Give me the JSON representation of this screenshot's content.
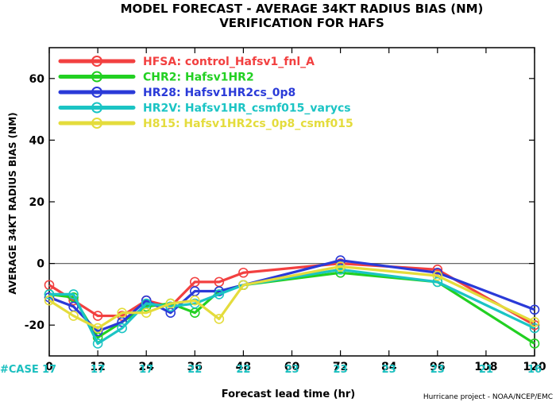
{
  "chart_data": {
    "type": "line",
    "title": "MODEL FORECAST - AVERAGE 34KT RADIUS BIAS (NM)",
    "subtitle": "VERIFICATION FOR HAFS",
    "xlabel": "Forecast lead time (hr)",
    "ylabel": "AVERAGE 34KT RADIUS BIAS (NM)",
    "xlim": [
      0,
      120
    ],
    "ylim": [
      -30,
      70
    ],
    "x_ticks": [
      0,
      12,
      24,
      36,
      48,
      60,
      72,
      84,
      96,
      108,
      120
    ],
    "y_ticks": [
      -20,
      0,
      20,
      40,
      60
    ],
    "zero_line": true,
    "legend_position": "top-left",
    "case_label": "#CASE",
    "case_color": "#1bbfbf",
    "cases": [
      {
        "x": 0,
        "n": "17"
      },
      {
        "x": 12,
        "n": "17"
      },
      {
        "x": 24,
        "n": "17"
      },
      {
        "x": 36,
        "n": "22"
      },
      {
        "x": 48,
        "n": "22"
      },
      {
        "x": 60,
        "n": "23"
      },
      {
        "x": 72,
        "n": "23"
      },
      {
        "x": 84,
        "n": "23"
      },
      {
        "x": 96,
        "n": "23"
      },
      {
        "x": 108,
        "n": "21"
      },
      {
        "x": 120,
        "n": "16"
      }
    ],
    "series": [
      {
        "name": "HFSA: control_Hafsv1_fnl_A",
        "color": "#f24040",
        "x": [
          0,
          6,
          12,
          18,
          24,
          30,
          36,
          42,
          48,
          72,
          96,
          120
        ],
        "y": [
          -7,
          -12,
          -17,
          -17,
          -12,
          -14,
          -6,
          -6,
          -3,
          0,
          -2,
          -20
        ]
      },
      {
        "name": "CHR2: Hafsv1HR2",
        "color": "#22d022",
        "x": [
          0,
          6,
          12,
          18,
          24,
          30,
          36,
          42,
          48,
          72,
          96,
          120
        ],
        "y": [
          -10,
          -11,
          -24,
          -19,
          -14,
          -13,
          -16,
          -9,
          -7,
          -3,
          -6,
          -26
        ]
      },
      {
        "name": "HR28: Hafsv1HR2cs_0p8",
        "color": "#2a3ad8",
        "x": [
          0,
          6,
          12,
          18,
          24,
          30,
          36,
          42,
          48,
          72,
          96,
          120
        ],
        "y": [
          -11,
          -14,
          -22,
          -19,
          -12,
          -16,
          -9,
          -9,
          -7,
          1,
          -3,
          -15
        ]
      },
      {
        "name": "HR2V: Hafsv1HR_csmf015_varycs",
        "color": "#1bc4c4",
        "x": [
          0,
          6,
          12,
          18,
          24,
          30,
          36,
          42,
          48,
          72,
          96,
          120
        ],
        "y": [
          -10,
          -10,
          -26,
          -21,
          -13,
          -14,
          -13,
          -10,
          -7,
          -2,
          -6,
          -21
        ]
      },
      {
        "name": "H815: Hafsv1HR2cs_0p8_csmf015",
        "color": "#e4dc3c",
        "x": [
          0,
          6,
          12,
          18,
          24,
          30,
          36,
          42,
          48,
          72,
          96,
          120
        ],
        "y": [
          -12,
          -17,
          -21,
          -16,
          -16,
          -13,
          -12,
          -18,
          -7,
          -1,
          -4,
          -19
        ]
      }
    ],
    "credit": "Hurricane project - NOAA/NCEP/EMC"
  }
}
